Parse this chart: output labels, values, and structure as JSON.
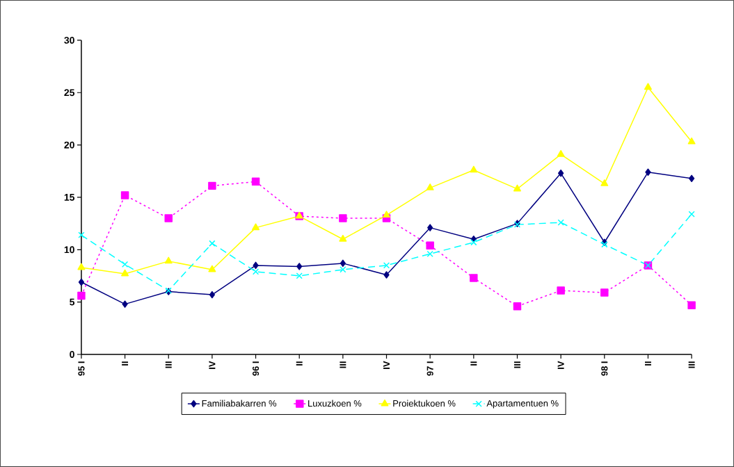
{
  "chart_data": {
    "type": "line",
    "categories": [
      "95 I",
      "II",
      "III",
      "IV",
      "96 I",
      "II",
      "III",
      "IV",
      "97 I",
      "II",
      "III",
      "IV",
      "98 I",
      "II",
      "III"
    ],
    "ylim": [
      0,
      30
    ],
    "yticks": [
      0,
      5,
      10,
      15,
      20,
      25,
      30
    ],
    "legend": "bottom",
    "grid": false,
    "series": [
      {
        "name": "Familiabakarren %",
        "color": "#000080",
        "marker": "diamond",
        "line_style": "solid",
        "values": [
          6.9,
          4.8,
          6.0,
          5.7,
          8.5,
          8.4,
          8.7,
          7.6,
          12.1,
          11.0,
          12.5,
          17.3,
          10.7,
          17.4,
          16.8
        ]
      },
      {
        "name": "Luxuzkoen %",
        "color": "#ff00ff",
        "marker": "square",
        "line_style": "dotted",
        "values": [
          5.6,
          15.2,
          13.0,
          16.1,
          16.5,
          13.2,
          13.0,
          13.0,
          10.4,
          7.3,
          4.6,
          6.1,
          5.9,
          8.5,
          4.7
        ]
      },
      {
        "name": "Proiektukoen %",
        "color": "#ffff00",
        "marker": "triangle",
        "line_style": "solid",
        "values": [
          8.3,
          7.7,
          8.9,
          8.1,
          12.1,
          13.2,
          11.0,
          13.3,
          15.9,
          17.6,
          15.8,
          19.1,
          16.3,
          25.5,
          20.3
        ]
      },
      {
        "name": "Apartamentuen %",
        "color": "#00ffff",
        "marker": "cross",
        "line_style": "dashed",
        "values": [
          11.4,
          8.6,
          6.1,
          10.6,
          7.9,
          7.5,
          8.1,
          8.5,
          9.6,
          10.7,
          12.4,
          12.6,
          10.5,
          8.5,
          13.4
        ]
      }
    ]
  }
}
